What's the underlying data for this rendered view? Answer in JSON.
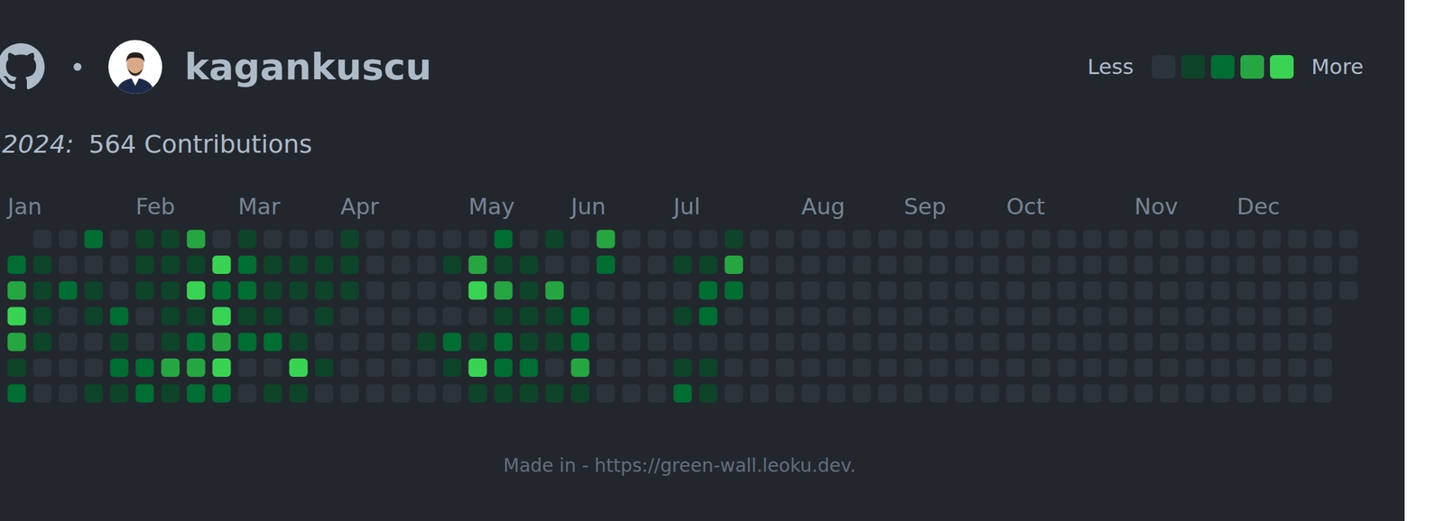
{
  "chart_data": {
    "type": "heatmap",
    "title": "kagankuscu",
    "period_label": "2024:",
    "subtitle": "564 Contributions",
    "legend_labels": [
      "Less",
      "More"
    ],
    "colors": [
      "#2d333b",
      "#0e4429",
      "#006d32",
      "#26a641",
      "#39d353"
    ],
    "footer": "Made in - https://green-wall.leoku.dev.",
    "tick_labels": "x",
    "categories": [
      "Jan",
      null,
      null,
      null,
      null,
      "Feb",
      null,
      null,
      null,
      "Mar",
      null,
      null,
      null,
      "Apr",
      null,
      null,
      null,
      null,
      "May",
      null,
      null,
      null,
      "Jun",
      null,
      null,
      null,
      "Jul",
      null,
      null,
      null,
      null,
      "Aug",
      null,
      null,
      null,
      "Sep",
      null,
      null,
      null,
      "Oct",
      null,
      null,
      null,
      null,
      "Nov",
      null,
      null,
      null,
      "Dec",
      null,
      null,
      null,
      null
    ],
    "cells": [
      [
        null,
        0,
        0,
        2,
        0,
        1,
        1,
        3,
        0,
        1,
        0,
        0,
        0,
        1,
        0,
        0,
        0,
        0,
        0,
        2,
        0,
        1,
        0,
        3,
        0,
        0,
        0,
        0,
        1,
        0,
        0,
        0,
        0,
        0,
        0,
        0,
        0,
        0,
        0,
        0,
        0,
        0,
        0,
        0,
        0,
        0,
        0,
        0,
        0,
        0,
        0,
        0,
        0
      ],
      [
        2,
        1,
        0,
        0,
        0,
        1,
        1,
        1,
        4,
        2,
        1,
        1,
        1,
        1,
        0,
        0,
        0,
        1,
        3,
        1,
        1,
        0,
        0,
        2,
        0,
        0,
        1,
        1,
        3,
        0,
        0,
        0,
        0,
        0,
        0,
        0,
        0,
        0,
        0,
        0,
        0,
        0,
        0,
        0,
        0,
        0,
        0,
        0,
        0,
        0,
        0,
        0,
        0
      ],
      [
        3,
        1,
        2,
        1,
        0,
        1,
        1,
        4,
        2,
        2,
        1,
        1,
        1,
        1,
        0,
        0,
        0,
        0,
        4,
        3,
        1,
        3,
        0,
        0,
        0,
        0,
        0,
        2,
        2,
        0,
        0,
        0,
        0,
        0,
        0,
        0,
        0,
        0,
        0,
        0,
        0,
        0,
        0,
        0,
        0,
        0,
        0,
        0,
        0,
        0,
        0,
        0,
        0
      ],
      [
        4,
        1,
        0,
        1,
        2,
        0,
        1,
        1,
        4,
        1,
        1,
        0,
        1,
        0,
        0,
        0,
        0,
        0,
        0,
        1,
        1,
        1,
        2,
        0,
        0,
        0,
        1,
        2,
        0,
        0,
        0,
        0,
        0,
        0,
        0,
        0,
        0,
        0,
        0,
        0,
        0,
        0,
        0,
        0,
        0,
        0,
        0,
        0,
        0,
        0,
        0,
        0,
        null
      ],
      [
        3,
        1,
        0,
        0,
        1,
        0,
        1,
        2,
        3,
        2,
        2,
        1,
        0,
        0,
        0,
        0,
        1,
        2,
        1,
        2,
        1,
        1,
        2,
        0,
        0,
        0,
        0,
        0,
        0,
        0,
        0,
        0,
        0,
        0,
        0,
        0,
        0,
        0,
        0,
        0,
        0,
        0,
        0,
        0,
        0,
        0,
        0,
        0,
        0,
        0,
        0,
        0,
        null
      ],
      [
        1,
        0,
        0,
        0,
        2,
        2,
        3,
        3,
        4,
        0,
        0,
        4,
        1,
        0,
        0,
        0,
        0,
        1,
        4,
        2,
        2,
        0,
        3,
        0,
        0,
        0,
        1,
        1,
        0,
        0,
        0,
        0,
        0,
        0,
        0,
        0,
        0,
        0,
        0,
        0,
        0,
        0,
        0,
        0,
        0,
        0,
        0,
        0,
        0,
        0,
        0,
        0,
        null
      ],
      [
        2,
        0,
        0,
        1,
        1,
        2,
        1,
        2,
        2,
        0,
        1,
        1,
        0,
        0,
        0,
        0,
        0,
        0,
        1,
        1,
        1,
        1,
        1,
        0,
        0,
        0,
        2,
        1,
        0,
        0,
        0,
        0,
        0,
        0,
        0,
        0,
        0,
        0,
        0,
        0,
        0,
        0,
        0,
        0,
        0,
        0,
        0,
        0,
        0,
        0,
        0,
        0,
        null
      ]
    ]
  }
}
